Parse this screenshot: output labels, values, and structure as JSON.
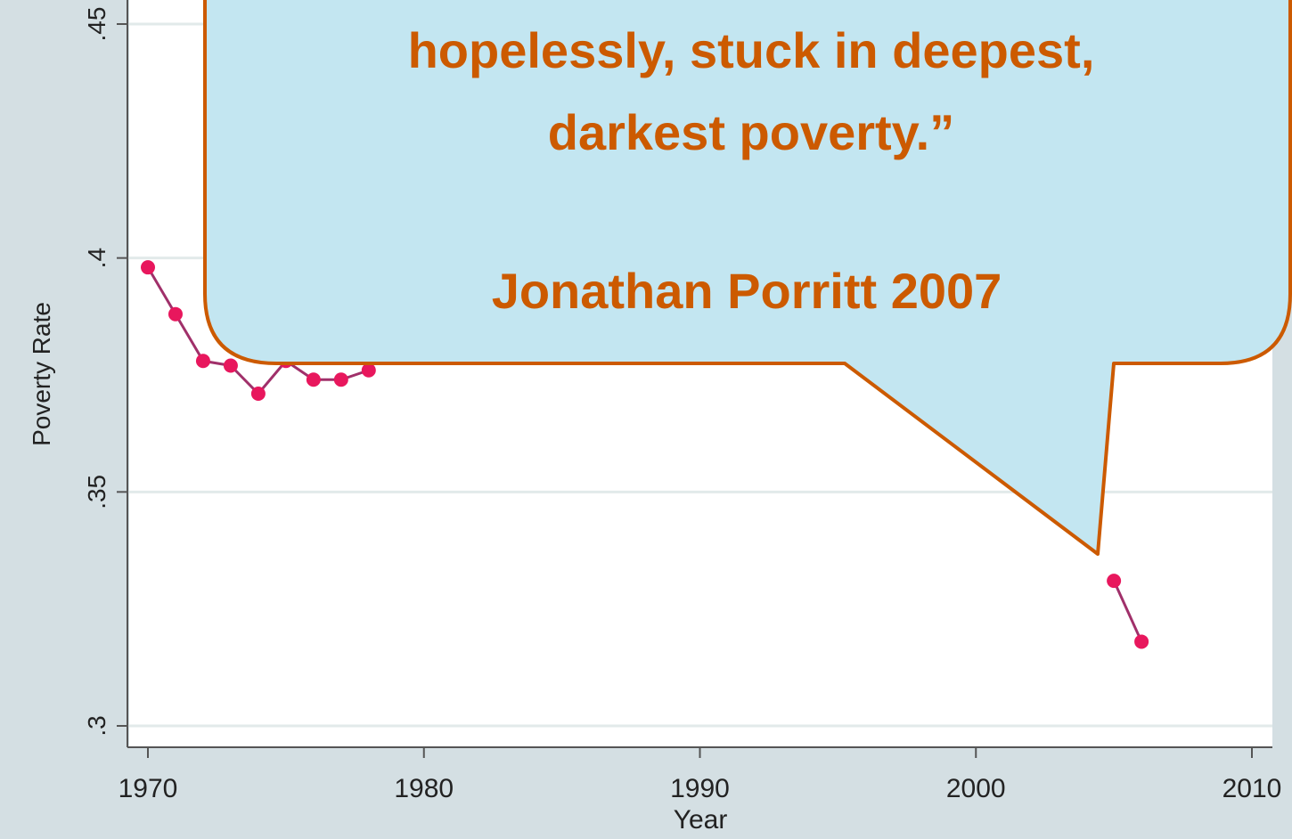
{
  "chart_data": {
    "type": "line",
    "title": "",
    "xlabel": "Year",
    "ylabel": "Poverty Rate",
    "xlim": [
      1970,
      2010
    ],
    "ylim": [
      0.3,
      0.45
    ],
    "x_ticks": [
      1970,
      1980,
      1990,
      2000,
      2010
    ],
    "x_tick_labels": [
      "1970",
      "1980",
      "1990",
      "2000",
      "2010"
    ],
    "y_ticks": [
      0.3,
      0.35,
      0.4,
      0.45
    ],
    "y_tick_labels": [
      ".3",
      ".35",
      ".4",
      ".45"
    ],
    "grid": true,
    "series": [
      {
        "color": "#e8175d",
        "line_color": "#a0306a",
        "points": [
          {
            "x": 1970,
            "y": 0.398
          },
          {
            "x": 1971,
            "y": 0.388
          },
          {
            "x": 1972,
            "y": 0.378
          },
          {
            "x": 1973,
            "y": 0.377
          },
          {
            "x": 1974,
            "y": 0.371
          },
          {
            "x": 1975,
            "y": 0.378
          },
          {
            "x": 1976,
            "y": 0.374
          },
          {
            "x": 1977,
            "y": 0.374
          },
          {
            "x": 1978,
            "y": 0.376
          },
          {
            "x": 2005,
            "y": 0.331
          },
          {
            "x": 2006,
            "y": 0.318
          }
        ]
      }
    ]
  },
  "callout": {
    "line1": "hopelessly, stuck in deepest,",
    "line2": "darkest poverty.”",
    "attribution": "Jonathan Porritt 2007",
    "fill": "#c3e6f1",
    "border": "#cc5a00",
    "text_color": "#cc5a00"
  },
  "colors": {
    "background": "#d4dfe3",
    "plot_area": "#ffffff",
    "grid": "#e2eaea",
    "axis": "#555555"
  }
}
